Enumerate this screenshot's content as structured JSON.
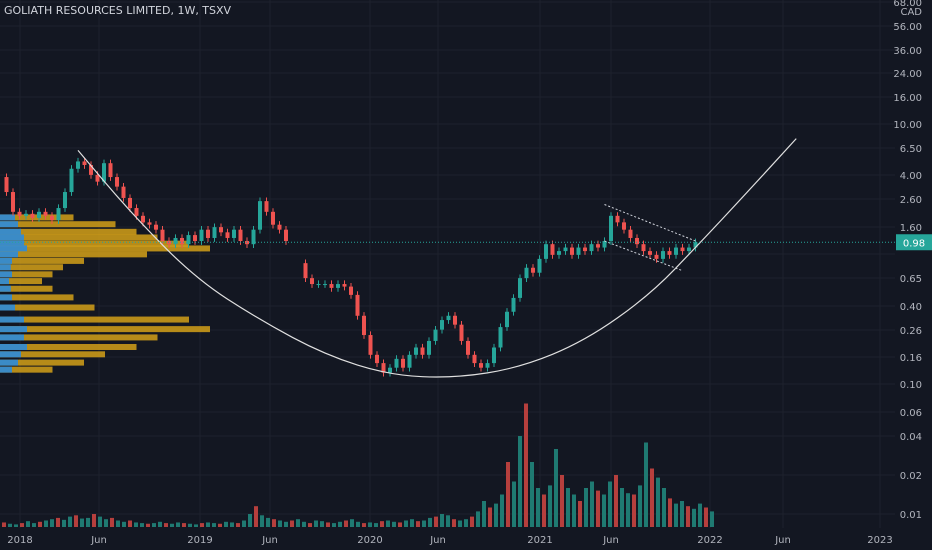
{
  "chart_data": {
    "type": "candlestick",
    "title": "GOLIATH RESOURCES LIMITED, 1W, TSXV",
    "currency": "CAD",
    "last_price": "0.98",
    "y_scale": "log",
    "y_ticks": [
      "68.00",
      "56.00",
      "36.00",
      "24.00",
      "16.00",
      "10.00",
      "6.50",
      "4.00",
      "2.60",
      "1.60",
      "0.98",
      "0.65",
      "0.40",
      "0.26",
      "0.16",
      "0.10",
      "0.06",
      "0.04",
      "0.02",
      "0.01"
    ],
    "x_ticks": [
      "2018",
      "Jun",
      "2019",
      "Jun",
      "2020",
      "Jun",
      "2021",
      "Jun",
      "2022",
      "Jun",
      "2023"
    ],
    "grid": true,
    "colors": {
      "up": "#26a69a",
      "down": "#ef5350",
      "volume_up": "#1f7a72",
      "volume_down": "#b63f3d",
      "profile_a": "#2d8bd9",
      "profile_b": "#d4a017",
      "curve": "#e0e0e0",
      "price_line": "#26a69a"
    },
    "price_path": [
      {
        "t": 0,
        "p": 2.8
      },
      {
        "t": 2,
        "p": 2.2
      },
      {
        "t": 4,
        "p": 1.6
      },
      {
        "t": 6,
        "p": 1.5
      },
      {
        "t": 8,
        "p": 1.55
      },
      {
        "t": 10,
        "p": 1.45
      },
      {
        "t": 12,
        "p": 1.6
      },
      {
        "t": 14,
        "p": 1.5
      },
      {
        "t": 16,
        "p": 1.4
      },
      {
        "t": 18,
        "p": 1.7
      },
      {
        "t": 20,
        "p": 2.2
      },
      {
        "t": 22,
        "p": 3.2
      },
      {
        "t": 24,
        "p": 3.6
      },
      {
        "t": 26,
        "p": 3.4
      },
      {
        "t": 28,
        "p": 2.9
      },
      {
        "t": 30,
        "p": 2.6
      },
      {
        "t": 32,
        "p": 3.5
      },
      {
        "t": 34,
        "p": 2.8
      },
      {
        "t": 36,
        "p": 2.4
      },
      {
        "t": 38,
        "p": 2.0
      },
      {
        "t": 40,
        "p": 1.7
      },
      {
        "t": 42,
        "p": 1.5
      },
      {
        "t": 44,
        "p": 1.35
      },
      {
        "t": 46,
        "p": 1.3
      },
      {
        "t": 48,
        "p": 1.2
      },
      {
        "t": 50,
        "p": 1.0
      },
      {
        "t": 52,
        "p": 0.95
      },
      {
        "t": 54,
        "p": 1.05
      },
      {
        "t": 56,
        "p": 0.95
      },
      {
        "t": 58,
        "p": 1.1
      },
      {
        "t": 60,
        "p": 1.0
      },
      {
        "t": 62,
        "p": 1.2
      },
      {
        "t": 64,
        "p": 1.05
      },
      {
        "t": 66,
        "p": 1.25
      },
      {
        "t": 68,
        "p": 1.15
      },
      {
        "t": 70,
        "p": 1.05
      },
      {
        "t": 72,
        "p": 1.2
      },
      {
        "t": 74,
        "p": 1.0
      },
      {
        "t": 76,
        "p": 0.95
      },
      {
        "t": 78,
        "p": 1.2
      },
      {
        "t": 80,
        "p": 1.9
      },
      {
        "t": 82,
        "p": 1.6
      },
      {
        "t": 84,
        "p": 1.3
      },
      {
        "t": 86,
        "p": 1.2
      },
      {
        "t": 88,
        "p": 1.0
      },
      {
        "t": 92,
        "p": 0.7
      },
      {
        "t": 94,
        "p": 0.55
      },
      {
        "t": 96,
        "p": 0.5
      },
      {
        "t": 98,
        "p": 0.5
      },
      {
        "t": 100,
        "p": 0.5
      },
      {
        "t": 102,
        "p": 0.47
      },
      {
        "t": 104,
        "p": 0.5
      },
      {
        "t": 106,
        "p": 0.48
      },
      {
        "t": 108,
        "p": 0.42
      },
      {
        "t": 110,
        "p": 0.3
      },
      {
        "t": 112,
        "p": 0.22
      },
      {
        "t": 114,
        "p": 0.16
      },
      {
        "t": 116,
        "p": 0.14
      },
      {
        "t": 118,
        "p": 0.12
      },
      {
        "t": 120,
        "p": 0.13
      },
      {
        "t": 122,
        "p": 0.15
      },
      {
        "t": 124,
        "p": 0.13
      },
      {
        "t": 126,
        "p": 0.16
      },
      {
        "t": 128,
        "p": 0.18
      },
      {
        "t": 130,
        "p": 0.16
      },
      {
        "t": 132,
        "p": 0.2
      },
      {
        "t": 134,
        "p": 0.24
      },
      {
        "t": 136,
        "p": 0.28
      },
      {
        "t": 138,
        "p": 0.3
      },
      {
        "t": 140,
        "p": 0.26
      },
      {
        "t": 142,
        "p": 0.2
      },
      {
        "t": 144,
        "p": 0.16
      },
      {
        "t": 146,
        "p": 0.14
      },
      {
        "t": 148,
        "p": 0.13
      },
      {
        "t": 150,
        "p": 0.14
      },
      {
        "t": 152,
        "p": 0.18
      },
      {
        "t": 154,
        "p": 0.25
      },
      {
        "t": 156,
        "p": 0.32
      },
      {
        "t": 158,
        "p": 0.4
      },
      {
        "t": 160,
        "p": 0.55
      },
      {
        "t": 162,
        "p": 0.65
      },
      {
        "t": 164,
        "p": 0.6
      },
      {
        "t": 166,
        "p": 0.75
      },
      {
        "t": 168,
        "p": 0.95
      },
      {
        "t": 170,
        "p": 0.8
      },
      {
        "t": 172,
        "p": 0.85
      },
      {
        "t": 174,
        "p": 0.9
      },
      {
        "t": 176,
        "p": 0.8
      },
      {
        "t": 178,
        "p": 0.9
      },
      {
        "t": 180,
        "p": 0.85
      },
      {
        "t": 182,
        "p": 0.95
      },
      {
        "t": 184,
        "p": 0.9
      },
      {
        "t": 186,
        "p": 1.0
      },
      {
        "t": 188,
        "p": 1.5
      },
      {
        "t": 190,
        "p": 1.35
      },
      {
        "t": 192,
        "p": 1.2
      },
      {
        "t": 194,
        "p": 1.05
      },
      {
        "t": 196,
        "p": 0.95
      },
      {
        "t": 198,
        "p": 0.85
      },
      {
        "t": 200,
        "p": 0.8
      },
      {
        "t": 202,
        "p": 0.75
      },
      {
        "t": 204,
        "p": 0.85
      },
      {
        "t": 206,
        "p": 0.8
      },
      {
        "t": 208,
        "p": 0.9
      },
      {
        "t": 210,
        "p": 0.85
      },
      {
        "t": 212,
        "p": 0.9
      },
      {
        "t": 214,
        "p": 0.98
      }
    ],
    "gap_range": [
      89,
      91
    ],
    "volume": [
      0.35,
      0.25,
      0.2,
      0.3,
      0.45,
      0.3,
      0.4,
      0.5,
      0.6,
      0.7,
      0.55,
      0.8,
      0.9,
      0.65,
      0.7,
      1.0,
      0.8,
      0.6,
      0.7,
      0.5,
      0.4,
      0.5,
      0.35,
      0.3,
      0.25,
      0.3,
      0.4,
      0.3,
      0.25,
      0.35,
      0.3,
      0.25,
      0.2,
      0.3,
      0.35,
      0.3,
      0.25,
      0.4,
      0.35,
      0.3,
      0.5,
      1.0,
      1.6,
      0.9,
      0.7,
      0.6,
      0.5,
      0.4,
      0.5,
      0.6,
      0.4,
      0.3,
      0.5,
      0.45,
      0.35,
      0.3,
      0.4,
      0.5,
      0.6,
      0.4,
      0.3,
      0.35,
      0.3,
      0.45,
      0.5,
      0.4,
      0.35,
      0.5,
      0.6,
      0.45,
      0.5,
      0.7,
      0.8,
      1.0,
      0.9,
      0.6,
      0.5,
      0.6,
      0.8,
      1.2,
      2.0,
      1.5,
      1.8,
      2.5,
      5.0,
      3.5,
      7.0,
      9.5,
      5.0,
      3.0,
      2.5,
      3.2,
      6.0,
      4.0,
      3.0,
      2.5,
      2.0,
      3.0,
      3.5,
      2.8,
      2.5,
      3.5,
      4.0,
      3.0,
      2.6,
      2.5,
      3.2,
      6.5,
      4.5,
      3.8,
      3.0,
      2.2,
      1.8,
      2.0,
      1.6,
      1.4,
      1.8,
      1.5,
      1.2
    ],
    "profile_bars": [
      {
        "price": 1.45,
        "a": 0.25,
        "b": 0.35
      },
      {
        "price": 1.3,
        "a": 0.3,
        "b": 0.55
      },
      {
        "price": 1.15,
        "a": 0.35,
        "b": 0.65
      },
      {
        "price": 1.05,
        "a": 0.4,
        "b": 0.75
      },
      {
        "price": 0.95,
        "a": 0.4,
        "b": 0.9
      },
      {
        "price": 0.88,
        "a": 0.45,
        "b": 1.0
      },
      {
        "price": 0.8,
        "a": 0.3,
        "b": 0.7
      },
      {
        "price": 0.72,
        "a": 0.2,
        "b": 0.4
      },
      {
        "price": 0.65,
        "a": 0.18,
        "b": 0.3
      },
      {
        "price": 0.58,
        "a": 0.2,
        "b": 0.25
      },
      {
        "price": 0.52,
        "a": 0.15,
        "b": 0.2
      },
      {
        "price": 0.46,
        "a": 0.18,
        "b": 0.25
      },
      {
        "price": 0.4,
        "a": 0.2,
        "b": 0.35
      },
      {
        "price": 0.34,
        "a": 0.25,
        "b": 0.45
      },
      {
        "price": 0.28,
        "a": 0.4,
        "b": 0.9
      },
      {
        "price": 0.24,
        "a": 0.45,
        "b": 1.0
      },
      {
        "price": 0.21,
        "a": 0.4,
        "b": 0.75
      },
      {
        "price": 0.18,
        "a": 0.45,
        "b": 0.65
      },
      {
        "price": 0.16,
        "a": 0.35,
        "b": 0.5
      },
      {
        "price": 0.14,
        "a": 0.3,
        "b": 0.4
      },
      {
        "price": 0.125,
        "a": 0.2,
        "b": 0.25
      }
    ],
    "bowl_curve": [
      {
        "t": 24,
        "p": 4.3
      },
      {
        "t": 40,
        "p": 1.6
      },
      {
        "t": 60,
        "p": 0.55
      },
      {
        "t": 80,
        "p": 0.28
      },
      {
        "t": 100,
        "p": 0.16
      },
      {
        "t": 120,
        "p": 0.115
      },
      {
        "t": 140,
        "p": 0.11
      },
      {
        "t": 160,
        "p": 0.13
      },
      {
        "t": 180,
        "p": 0.2
      },
      {
        "t": 200,
        "p": 0.42
      },
      {
        "t": 215,
        "p": 0.95
      },
      {
        "t": 230,
        "p": 2.2
      },
      {
        "t": 245,
        "p": 5.2
      }
    ],
    "channel_upper": [
      {
        "t": 186,
        "p": 1.8
      },
      {
        "t": 214,
        "p": 1.0
      }
    ],
    "channel_lower": [
      {
        "t": 186,
        "p": 1.0
      },
      {
        "t": 210,
        "p": 0.62
      }
    ]
  }
}
